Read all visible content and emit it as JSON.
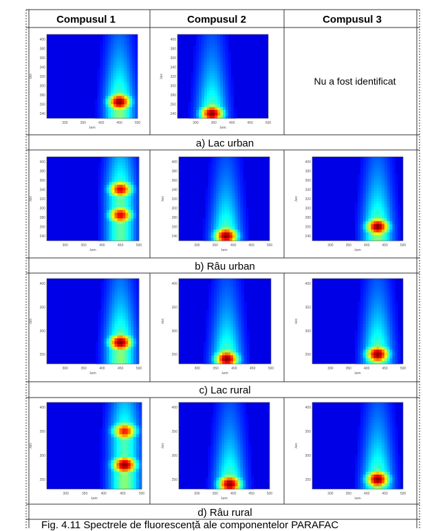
{
  "headers": [
    "Compusul 1",
    "Compusul 2",
    "Compusul 3"
  ],
  "not_identified": "Nu a fost identificat",
  "row_labels": [
    "a) Lac urban",
    "b) Râu urban",
    "c) Lac rural",
    "d) Râu rural"
  ],
  "caption": "Fig. 4.11 Spectrele de fluorescență ale componentelor PARAFAC",
  "axes": {
    "xlabel": "λem",
    "ylabel": "λex",
    "x_ticks_300": [
      "300",
      "350",
      "400",
      "450",
      "500"
    ],
    "y_ticks_fine": [
      "400",
      "380",
      "360",
      "340",
      "320",
      "300",
      "280",
      "260",
      "240"
    ],
    "y_ticks_coarse": [
      "400",
      "350",
      "300",
      "250"
    ]
  },
  "chart_data": [
    {
      "type": "heatmap",
      "row": "a) Lac urban",
      "component": "Compusul 1",
      "xlim": [
        250,
        500
      ],
      "ylim": [
        230,
        410
      ],
      "peaks": [
        {
          "x": 450,
          "y": 265,
          "intensity": 1.0
        }
      ]
    },
    {
      "type": "heatmap",
      "row": "a) Lac urban",
      "component": "Compusul 2",
      "xlim": [
        250,
        500
      ],
      "ylim": [
        230,
        410
      ],
      "peaks": [
        {
          "x": 345,
          "y": 240,
          "intensity": 1.0
        }
      ]
    },
    {
      "type": "heatmap",
      "row": "b) Râu urban",
      "component": "Compusul 1",
      "xlim": [
        250,
        500
      ],
      "ylim": [
        230,
        410
      ],
      "peaks": [
        {
          "x": 450,
          "y": 340,
          "intensity": 0.9
        },
        {
          "x": 450,
          "y": 285,
          "intensity": 0.9
        }
      ]
    },
    {
      "type": "heatmap",
      "row": "b) Râu urban",
      "component": "Compusul 2",
      "xlim": [
        250,
        500
      ],
      "ylim": [
        230,
        410
      ],
      "peaks": [
        {
          "x": 380,
          "y": 240,
          "intensity": 1.0
        }
      ]
    },
    {
      "type": "heatmap",
      "row": "b) Râu urban",
      "component": "Compusul 3",
      "xlim": [
        250,
        500
      ],
      "ylim": [
        230,
        410
      ],
      "peaks": [
        {
          "x": 430,
          "y": 260,
          "intensity": 1.0
        }
      ]
    },
    {
      "type": "heatmap",
      "row": "c) Lac rural",
      "component": "Compusul 1",
      "xlim": [
        250,
        500
      ],
      "ylim": [
        230,
        410
      ],
      "peaks": [
        {
          "x": 450,
          "y": 275,
          "intensity": 1.0
        }
      ]
    },
    {
      "type": "heatmap",
      "row": "c) Lac rural",
      "component": "Compusul 2",
      "xlim": [
        250,
        500
      ],
      "ylim": [
        230,
        410
      ],
      "peaks": [
        {
          "x": 380,
          "y": 240,
          "intensity": 1.0
        }
      ]
    },
    {
      "type": "heatmap",
      "row": "c) Lac rural",
      "component": "Compusul 3",
      "xlim": [
        250,
        500
      ],
      "ylim": [
        230,
        410
      ],
      "peaks": [
        {
          "x": 430,
          "y": 250,
          "intensity": 1.0
        }
      ]
    },
    {
      "type": "heatmap",
      "row": "d) Râu rural",
      "component": "Compusul 1",
      "xlim": [
        250,
        500
      ],
      "ylim": [
        230,
        410
      ],
      "peaks": [
        {
          "x": 455,
          "y": 280,
          "intensity": 1.0
        },
        {
          "x": 455,
          "y": 350,
          "intensity": 0.85
        }
      ]
    },
    {
      "type": "heatmap",
      "row": "d) Râu rural",
      "component": "Compusul 2",
      "xlim": [
        250,
        500
      ],
      "ylim": [
        230,
        410
      ],
      "peaks": [
        {
          "x": 390,
          "y": 240,
          "intensity": 1.0
        }
      ]
    },
    {
      "type": "heatmap",
      "row": "d) Râu rural",
      "component": "Compusul 3",
      "xlim": [
        250,
        500
      ],
      "ylim": [
        230,
        410
      ],
      "peaks": [
        {
          "x": 430,
          "y": 250,
          "intensity": 1.0
        }
      ]
    }
  ]
}
